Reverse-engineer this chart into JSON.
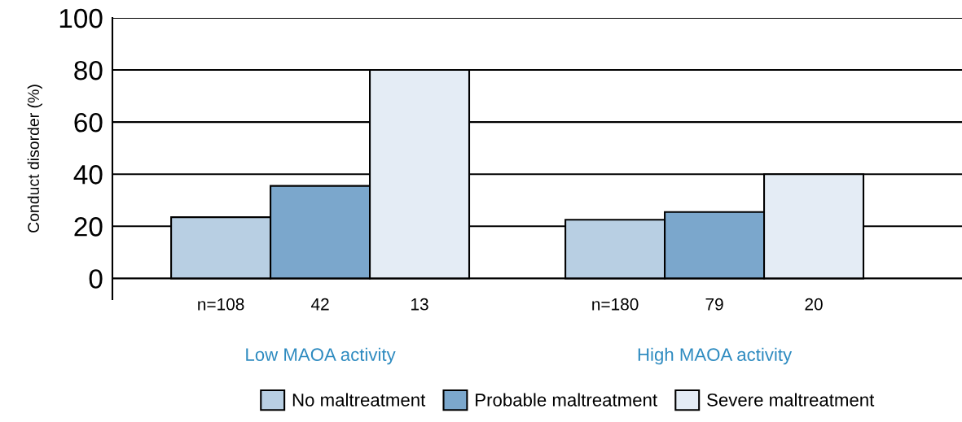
{
  "chart_data": {
    "type": "bar",
    "ylabel": "Conduct disorder (%)",
    "categories": [
      "Low MAOA activity",
      "High MAOA activity"
    ],
    "series": [
      {
        "name": "No maltreatment",
        "color": "#b8cfe3",
        "values": [
          23.5,
          22.5
        ]
      },
      {
        "name": "Probable maltreatment",
        "color": "#7ba7cc",
        "values": [
          35.5,
          25.5
        ]
      },
      {
        "name": "Severe maltreatment",
        "color": "#e4ecf5",
        "values": [
          80,
          40
        ]
      }
    ],
    "ylim": [
      -8,
      100
    ],
    "yticks": [
      0,
      20,
      40,
      60,
      80,
      100
    ],
    "grid": "y",
    "legend": "bottom",
    "annotations": [
      "n=108",
      "42",
      "13",
      "n=180",
      "79",
      "20"
    ]
  }
}
